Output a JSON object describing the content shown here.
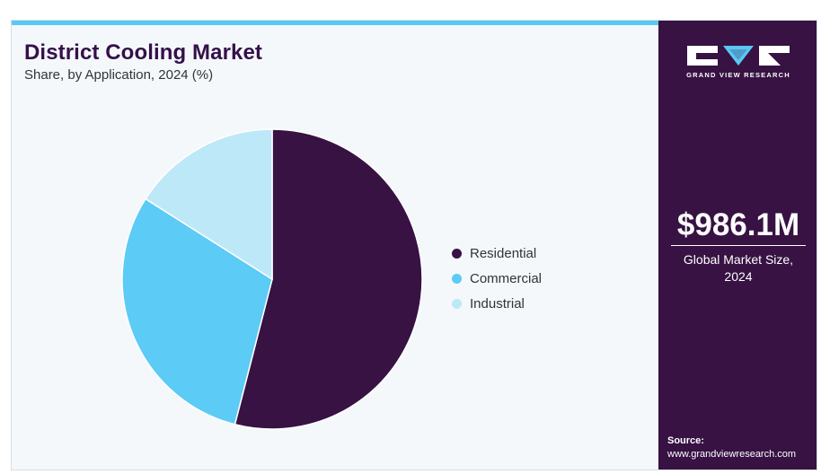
{
  "header": {
    "title": "District Cooling Market",
    "subtitle": "Share, by Application, 2024 (%)"
  },
  "colors": {
    "accent_bar": "#5ac8f5",
    "sidebar_bg": "#371243",
    "title": "#35104a"
  },
  "chart_data": {
    "type": "pie",
    "title": "District Cooling Market",
    "subtitle": "Share, by Application, 2024 (%)",
    "categories": [
      "Residential",
      "Commercial",
      "Industrial"
    ],
    "values": [
      54,
      30,
      16
    ],
    "colors": [
      "#371243",
      "#5ccbf5",
      "#bde8f8"
    ],
    "legend_position": "right"
  },
  "legend": {
    "items": [
      {
        "label": "Residential",
        "color": "#371243"
      },
      {
        "label": "Commercial",
        "color": "#5ccbf5"
      },
      {
        "label": "Industrial",
        "color": "#bde8f8"
      }
    ]
  },
  "sidebar": {
    "brand": "GRAND VIEW RESEARCH",
    "logo_icon": "gvr-logo-icon",
    "market_value": "$986.1M",
    "market_caption": "Global Market Size, 2024",
    "source_label": "Source:",
    "source_url": "www.grandviewresearch.com"
  }
}
